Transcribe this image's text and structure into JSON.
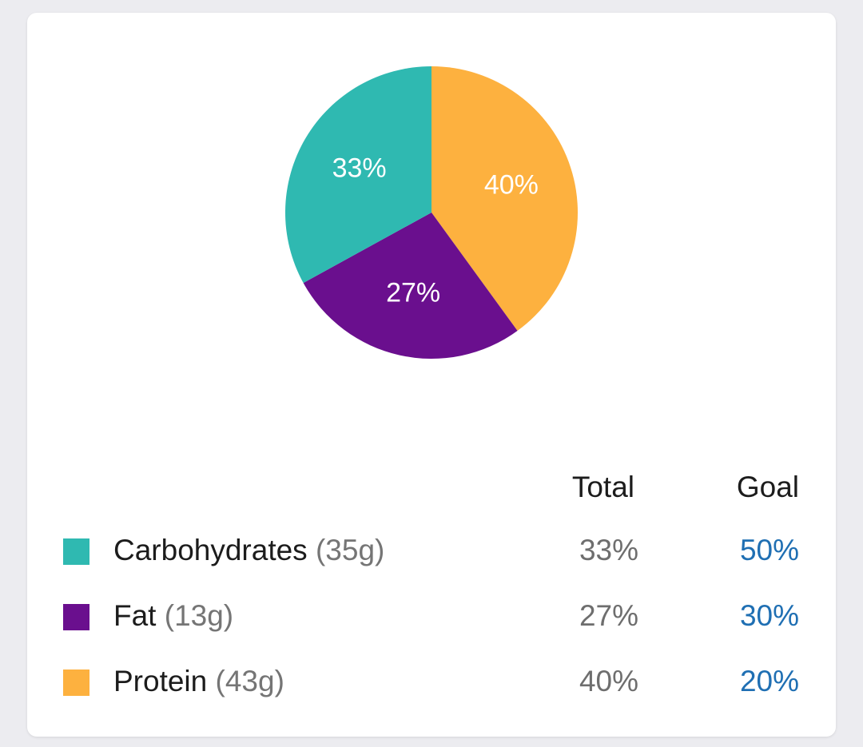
{
  "chart_data": {
    "type": "pie",
    "title": "",
    "slices": [
      {
        "label": "Carbohydrates",
        "value": 33,
        "label_text": "33%",
        "color": "#2fb9b1"
      },
      {
        "label": "Fat",
        "value": 27,
        "label_text": "27%",
        "color": "#6a0f8e"
      },
      {
        "label": "Protein",
        "value": 40,
        "label_text": "40%",
        "color": "#fdb13f"
      }
    ],
    "start": "12 o'clock",
    "order": [
      "Protein",
      "Fat",
      "Carbohydrates"
    ],
    "direction": "clockwise"
  },
  "table": {
    "header_total": "Total",
    "header_goal": "Goal",
    "rows": [
      {
        "name": "Carbohydrates",
        "grams": "(35g)",
        "total": "33%",
        "goal": "50%",
        "color": "#2fb9b1"
      },
      {
        "name": "Fat",
        "grams": "(13g)",
        "total": "27%",
        "goal": "30%",
        "color": "#6a0f8e"
      },
      {
        "name": "Protein",
        "grams": "(43g)",
        "total": "40%",
        "goal": "20%",
        "color": "#fdb13f"
      }
    ]
  }
}
